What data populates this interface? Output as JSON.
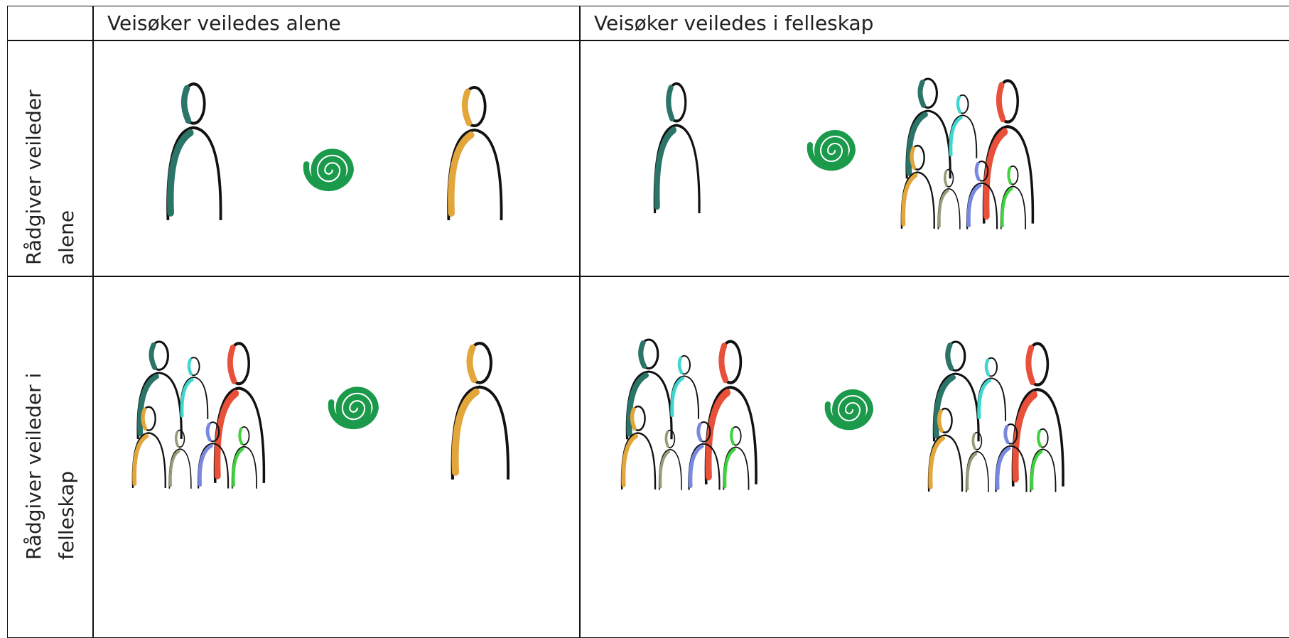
{
  "table": {
    "columns": [
      "Veisøker veiledes alene",
      "Veisøker veiledes i felleskap"
    ],
    "rows": [
      "Rådgiver veileder alene",
      "Rådgiver veileder i felleskap"
    ]
  }
}
